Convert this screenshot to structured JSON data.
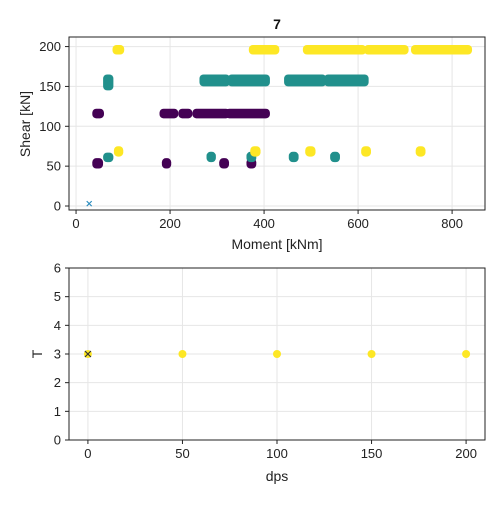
{
  "chart_data": [
    {
      "type": "scatter",
      "title": "7",
      "xlabel": "Moment [kNm]",
      "ylabel": "Shear [kN]",
      "xlim": [
        -15,
        870
      ],
      "ylim": [
        -5,
        212
      ],
      "xticks": [
        "0",
        "200",
        "400",
        "600",
        "800"
      ],
      "xtick_values": [
        0,
        200,
        400,
        600,
        800
      ],
      "yticks": [
        "0",
        "50",
        "100",
        "150",
        "200"
      ],
      "ytick_values": [
        0,
        50,
        100,
        150,
        200
      ],
      "grid": true,
      "colors": {
        "low": "#440154",
        "mid": "#21908c",
        "high": "#fde725",
        "marker_x": "#2b8cbe"
      },
      "series": [
        {
          "color": "#440154",
          "clusters": [
            {
              "x": [
                42,
                52
              ],
              "y": [
                110,
                122
              ]
            },
            {
              "x": [
                185,
                210
              ],
              "y": [
                110,
                122
              ]
            },
            {
              "x": [
                225,
                240
              ],
              "y": [
                110,
                122
              ]
            },
            {
              "x": [
                255,
                320
              ],
              "y": [
                110,
                122
              ]
            },
            {
              "x": [
                325,
                405
              ],
              "y": [
                110,
                122
              ]
            },
            {
              "x": [
                42,
                50
              ],
              "y": [
                47,
                60
              ]
            },
            {
              "x": [
                190,
                195
              ],
              "y": [
                47,
                60
              ]
            },
            {
              "x": [
                312,
                318
              ],
              "y": [
                47,
                60
              ]
            },
            {
              "x": [
                370,
                376
              ],
              "y": [
                47,
                60
              ]
            }
          ]
        },
        {
          "color": "#21908c",
          "clusters": [
            {
              "x": [
                65,
                72
              ],
              "y": [
                145,
                165
              ]
            },
            {
              "x": [
                270,
                320
              ],
              "y": [
                150,
                165
              ]
            },
            {
              "x": [
                330,
                405
              ],
              "y": [
                150,
                165
              ]
            },
            {
              "x": [
                450,
                525
              ],
              "y": [
                150,
                165
              ]
            },
            {
              "x": [
                535,
                615
              ],
              "y": [
                150,
                165
              ]
            },
            {
              "x": [
                65,
                72
              ],
              "y": [
                55,
                67
              ]
            },
            {
              "x": [
                285,
                290
              ],
              "y": [
                55,
                68
              ]
            },
            {
              "x": [
                370,
                376
              ],
              "y": [
                55,
                68
              ]
            },
            {
              "x": [
                460,
                466
              ],
              "y": [
                55,
                68
              ]
            },
            {
              "x": [
                548,
                554
              ],
              "y": [
                55,
                68
              ]
            }
          ]
        },
        {
          "color": "#fde725",
          "clusters": [
            {
              "x": [
                85,
                95
              ],
              "y": [
                190,
                202
              ]
            },
            {
              "x": [
                375,
                425
              ],
              "y": [
                190,
                202
              ]
            },
            {
              "x": [
                490,
                610
              ],
              "y": [
                190,
                202
              ]
            },
            {
              "x": [
                620,
                700
              ],
              "y": [
                190,
                202
              ]
            },
            {
              "x": [
                720,
                835
              ],
              "y": [
                190,
                202
              ]
            },
            {
              "x": [
                88,
                93
              ],
              "y": [
                62,
                75
              ]
            },
            {
              "x": [
                378,
                385
              ],
              "y": [
                62,
                75
              ]
            },
            {
              "x": [
                495,
                502
              ],
              "y": [
                62,
                75
              ]
            },
            {
              "x": [
                614,
                620
              ],
              "y": [
                62,
                75
              ]
            },
            {
              "x": [
                730,
                736
              ],
              "y": [
                62,
                75
              ]
            }
          ]
        }
      ],
      "marker": {
        "symbol": "x",
        "x": 28,
        "y": 3,
        "color": "#2b8cbe"
      }
    },
    {
      "type": "scatter",
      "xlabel": "dps",
      "ylabel": "T",
      "xlim": [
        -10,
        210
      ],
      "ylim": [
        0,
        6
      ],
      "xticks": [
        "0",
        "50",
        "100",
        "150",
        "200"
      ],
      "xtick_values": [
        0,
        50,
        100,
        150,
        200
      ],
      "yticks": [
        "0",
        "1",
        "2",
        "3",
        "4",
        "5",
        "6"
      ],
      "ytick_values": [
        0,
        1,
        2,
        3,
        4,
        5,
        6
      ],
      "grid": true,
      "points": [
        {
          "x": 0,
          "y": 3,
          "color": "#fde725"
        },
        {
          "x": 50,
          "y": 3,
          "color": "#fde725"
        },
        {
          "x": 100,
          "y": 3,
          "color": "#fde725"
        },
        {
          "x": 150,
          "y": 3,
          "color": "#fde725"
        },
        {
          "x": 200,
          "y": 3,
          "color": "#fde725"
        }
      ],
      "marker": {
        "symbol": "x",
        "x": 0,
        "y": 3,
        "color": "#333333"
      }
    }
  ]
}
